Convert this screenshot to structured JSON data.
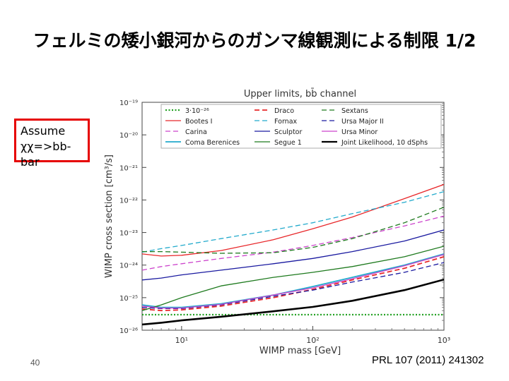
{
  "slide": {
    "title": "フェルミの矮小銀河からのガンマ線観測による制限 1/2",
    "assume_line1": "Assume",
    "assume_line2": "χχ=>bb-bar",
    "page_number": "40",
    "citation": "PRL 107 (2011) 241302"
  },
  "chart_data": {
    "type": "line",
    "title": "Upper limits, bb̄ channel",
    "xlabel": "WIMP mass [GeV]",
    "ylabel": "WIMP cross section [cm³/s]",
    "xscale": "log",
    "yscale": "log",
    "xlim": [
      5,
      1000
    ],
    "ylim": [
      1e-26,
      1e-19
    ],
    "x_ticks": [
      {
        "value": 10,
        "label": "10¹"
      },
      {
        "value": 100,
        "label": "10²"
      },
      {
        "value": 1000,
        "label": "10³"
      }
    ],
    "y_ticks": [
      {
        "value": 1e-19,
        "label": "10⁻¹⁹"
      },
      {
        "value": 1e-20,
        "label": "10⁻²⁰"
      },
      {
        "value": 1e-21,
        "label": "10⁻²¹"
      },
      {
        "value": 1e-22,
        "label": "10⁻²²"
      },
      {
        "value": 1e-23,
        "label": "10⁻²³"
      },
      {
        "value": 1e-24,
        "label": "10⁻²⁴"
      },
      {
        "value": 1e-25,
        "label": "10⁻²⁵"
      },
      {
        "value": 1e-26,
        "label": "10⁻²⁶"
      }
    ],
    "legend_position": "top",
    "series": [
      {
        "name": "3·10⁻²⁶",
        "color": "#22a022",
        "dash": "dotted",
        "width": 2.2,
        "x": [
          5,
          1000
        ],
        "y": [
          3e-26,
          3e-26
        ]
      },
      {
        "name": "Bootes I",
        "color": "#e8272a",
        "dash": "solid",
        "width": 1.3,
        "x": [
          5,
          7,
          10,
          20,
          50,
          100,
          200,
          500,
          1000
        ],
        "y": [
          2.2e-24,
          1.9e-24,
          2e-24,
          2.8e-24,
          6e-24,
          1.3e-23,
          3e-23,
          1.1e-22,
          3e-22
        ]
      },
      {
        "name": "Carina",
        "color": "#cc44cc",
        "dash": "dashed",
        "width": 1.3,
        "x": [
          5,
          7,
          10,
          20,
          50,
          100,
          200,
          500,
          1000
        ],
        "y": [
          7e-25,
          9e-25,
          1.1e-24,
          1.6e-24,
          2.5e-24,
          4e-24,
          7e-24,
          1.6e-23,
          3.2e-23
        ]
      },
      {
        "name": "Coma Berenices",
        "color": "#22aacc",
        "dash": "solid",
        "width": 1.8,
        "x": [
          5,
          7,
          10,
          20,
          50,
          100,
          200,
          500,
          1000
        ],
        "y": [
          6e-26,
          5e-26,
          5e-26,
          6.5e-26,
          1.2e-25,
          2.2e-25,
          4.2e-25,
          1e-24,
          2.2e-24
        ]
      },
      {
        "name": "Draco",
        "color": "#e8272a",
        "dash": "dashed",
        "width": 1.8,
        "x": [
          5,
          7,
          10,
          20,
          50,
          100,
          200,
          500,
          1000
        ],
        "y": [
          4.5e-26,
          4e-26,
          4.2e-26,
          5.5e-26,
          1e-25,
          1.8e-25,
          3.5e-25,
          8e-25,
          1.8e-24
        ]
      },
      {
        "name": "Fornax",
        "color": "#22aacc",
        "dash": "dashed",
        "width": 1.3,
        "x": [
          5,
          7,
          10,
          20,
          50,
          100,
          200,
          500,
          1000
        ],
        "y": [
          2.5e-24,
          3.2e-24,
          4e-24,
          6.5e-24,
          1.2e-23,
          2e-23,
          3.8e-23,
          8.5e-23,
          1.8e-22
        ]
      },
      {
        "name": "Sculptor",
        "color": "#1a1aa0",
        "dash": "solid",
        "width": 1.3,
        "x": [
          5,
          7,
          10,
          20,
          50,
          100,
          200,
          500,
          1000
        ],
        "y": [
          3.5e-25,
          4e-25,
          5e-25,
          7e-25,
          1.1e-24,
          1.6e-24,
          2.6e-24,
          5.5e-24,
          1.2e-23
        ]
      },
      {
        "name": "Segue 1",
        "color": "#1e7a1e",
        "dash": "solid",
        "width": 1.3,
        "x": [
          5,
          7,
          10,
          20,
          50,
          100,
          200,
          500,
          1000
        ],
        "y": [
          4e-26,
          6e-26,
          1e-25,
          2.3e-25,
          4.2e-25,
          6e-25,
          9e-25,
          1.8e-24,
          3.8e-24
        ]
      },
      {
        "name": "Sextans",
        "color": "#1e7a1e",
        "dash": "dashed",
        "width": 1.3,
        "x": [
          5,
          7,
          10,
          20,
          50,
          100,
          200,
          500,
          1000
        ],
        "y": [
          2.6e-24,
          2.6e-24,
          2.5e-24,
          2.3e-24,
          2.4e-24,
          3.5e-24,
          6.5e-24,
          2e-23,
          6e-23
        ]
      },
      {
        "name": "Ursa Major II",
        "color": "#1a1aa0",
        "dash": "dashed",
        "width": 1.3,
        "x": [
          5,
          7,
          10,
          20,
          50,
          100,
          200,
          500,
          1000
        ],
        "y": [
          5e-26,
          4.6e-26,
          4.6e-26,
          6e-26,
          1.1e-25,
          1.7e-25,
          3e-25,
          6e-25,
          1.2e-24
        ]
      },
      {
        "name": "Ursa Minor",
        "color": "#cc44cc",
        "dash": "solid",
        "width": 1.3,
        "x": [
          5,
          7,
          10,
          20,
          50,
          100,
          200,
          500,
          1000
        ],
        "y": [
          5.5e-26,
          4.8e-26,
          4.8e-26,
          6.2e-26,
          1.2e-25,
          2e-25,
          3.8e-25,
          9.5e-25,
          2.1e-24
        ]
      },
      {
        "name": "Joint Likelihood, 10 dSphs",
        "color": "#000000",
        "dash": "solid",
        "width": 2.6,
        "x": [
          5,
          7,
          10,
          20,
          50,
          100,
          200,
          500,
          1000
        ],
        "y": [
          1.5e-26,
          1.7e-26,
          2e-26,
          2.6e-26,
          3.8e-26,
          5.2e-26,
          8e-26,
          1.7e-25,
          3.6e-25
        ]
      }
    ]
  }
}
